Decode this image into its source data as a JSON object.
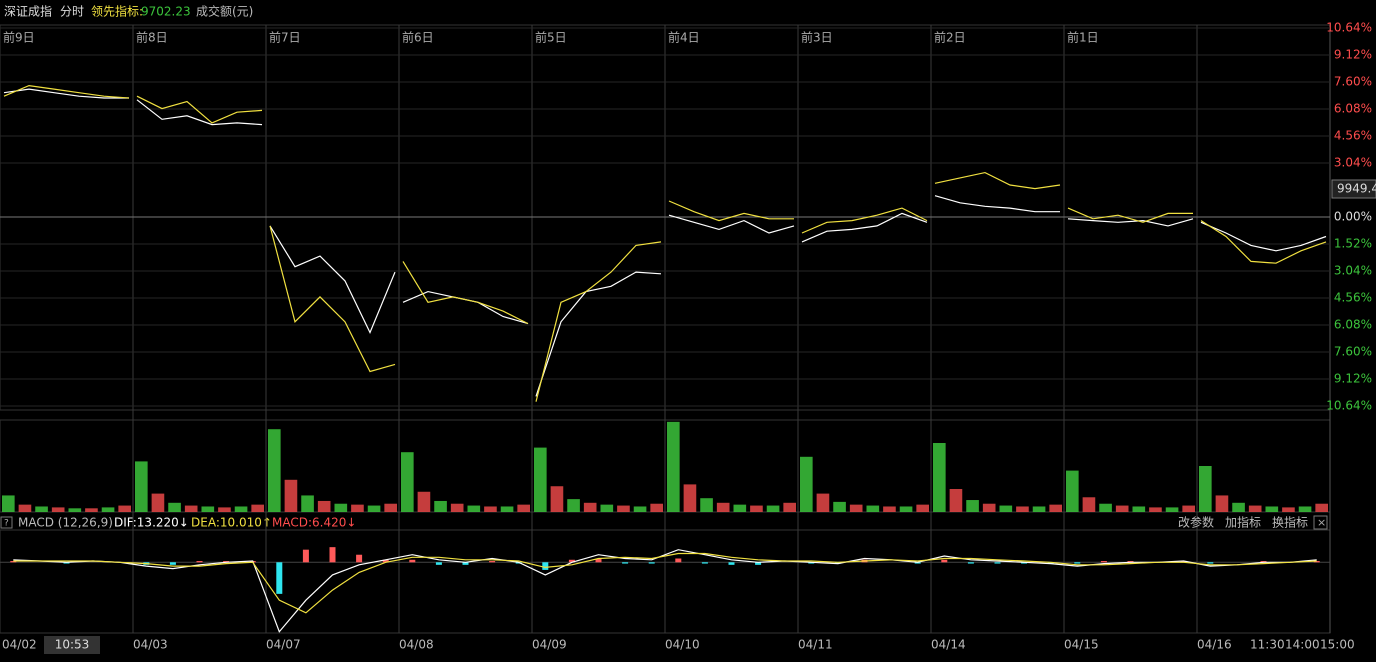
{
  "header": {
    "name": "深证成指",
    "mode": "分时",
    "indicator_label": "领先指标:",
    "indicator_value": "9702.23",
    "volume_label": "成交额(元)"
  },
  "day_labels": [
    "前9日",
    "前8日",
    "前7日",
    "前6日",
    "前5日",
    "前4日",
    "前3日",
    "前2日",
    "前1日"
  ],
  "price_tag": "9949.4",
  "chart": {
    "ylim": [
      -10.64,
      10.64
    ],
    "yticks": [
      {
        "value": 10.64,
        "label": "10.64%"
      },
      {
        "value": 9.12,
        "label": "9.12%"
      },
      {
        "value": 7.6,
        "label": "7.60%"
      },
      {
        "value": 6.08,
        "label": "6.08%"
      },
      {
        "value": 4.56,
        "label": "4.56%"
      },
      {
        "value": 3.04,
        "label": "3.04%"
      },
      {
        "value": 0,
        "label": "0.00%"
      },
      {
        "value": -1.52,
        "label": "1.52%"
      },
      {
        "value": -3.04,
        "label": "3.04%"
      },
      {
        "value": -4.56,
        "label": "4.56%"
      },
      {
        "value": -6.08,
        "label": "6.08%"
      },
      {
        "value": -7.6,
        "label": "7.60%"
      },
      {
        "value": -9.12,
        "label": "9.12%"
      },
      {
        "value": -10.64,
        "label": "10.64%"
      }
    ],
    "series": [
      {
        "color": "#ffffff",
        "values": [
          7.0,
          7.2,
          7.0,
          6.8,
          6.7,
          6.7,
          null,
          6.6,
          5.5,
          5.7,
          5.2,
          5.3,
          5.2,
          null,
          -0.5,
          -2.8,
          -2.2,
          -3.6,
          -6.5,
          -3.1,
          null,
          -4.8,
          -4.2,
          -4.5,
          -4.8,
          -5.6,
          -6.0,
          null,
          -10.1,
          -5.9,
          -4.2,
          -3.9,
          -3.1,
          -3.2,
          null,
          0.1,
          -0.3,
          -0.7,
          -0.2,
          -0.9,
          -0.5,
          null,
          -1.4,
          -0.8,
          -0.7,
          -0.5,
          0.2,
          -0.3,
          null,
          1.2,
          0.8,
          0.6,
          0.5,
          0.3,
          0.3,
          null,
          -0.1,
          -0.2,
          -0.3,
          -0.2,
          -0.5,
          -0.1,
          null,
          -0.3,
          -0.9,
          -1.6,
          -1.9,
          -1.6,
          -1.1
        ]
      },
      {
        "color": "#f0e040",
        "values": [
          6.8,
          7.4,
          7.2,
          7.0,
          6.8,
          6.7,
          null,
          6.8,
          6.1,
          6.5,
          5.3,
          5.9,
          6.0,
          null,
          -0.5,
          -5.9,
          -4.5,
          -5.9,
          -8.7,
          -8.3,
          null,
          -2.5,
          -4.8,
          -4.5,
          -4.8,
          -5.3,
          -6.0,
          null,
          -10.4,
          -4.8,
          -4.2,
          -3.1,
          -1.6,
          -1.4,
          null,
          0.9,
          0.3,
          -0.2,
          0.2,
          -0.1,
          -0.1,
          null,
          -0.9,
          -0.3,
          -0.2,
          0.1,
          0.5,
          -0.2,
          null,
          1.9,
          2.2,
          2.5,
          1.8,
          1.6,
          1.8,
          null,
          0.5,
          -0.1,
          0.1,
          -0.3,
          0.2,
          0.2,
          null,
          -0.2,
          -1.1,
          -2.5,
          -2.6,
          -1.9,
          -1.4
        ]
      }
    ]
  },
  "volume": {
    "ylim": [
      0,
      100
    ],
    "values": [
      18,
      8,
      6,
      5,
      4,
      4,
      5,
      7,
      55,
      20,
      10,
      7,
      6,
      5,
      6,
      8,
      90,
      35,
      18,
      12,
      9,
      8,
      7,
      9,
      65,
      22,
      12,
      9,
      7,
      6,
      6,
      8,
      70,
      28,
      14,
      10,
      8,
      7,
      6,
      9,
      98,
      30,
      15,
      10,
      8,
      7,
      7,
      10,
      60,
      20,
      11,
      8,
      7,
      6,
      6,
      8,
      75,
      25,
      13,
      9,
      7,
      6,
      6,
      8,
      45,
      16,
      9,
      7,
      6,
      5,
      5,
      7,
      50,
      18,
      10,
      7,
      6,
      5,
      6,
      9
    ]
  },
  "macd": {
    "title": "MACD (12,26,9)",
    "dif": "DIF:13.220↓",
    "dea": "DEA:10.010↑",
    "macd": "MACD:6.420↓",
    "buttons": [
      "改参数",
      "加指标",
      "换指标"
    ],
    "ylim": [
      -56,
      24
    ],
    "dif_values": [
      2,
      1,
      0,
      1,
      0,
      -3,
      -5,
      -2,
      0,
      1,
      -55,
      -30,
      -10,
      -2,
      2,
      6,
      2,
      0,
      3,
      0,
      -10,
      0,
      6,
      3,
      2,
      10,
      6,
      2,
      0,
      1,
      0,
      -1,
      3,
      2,
      0,
      5,
      2,
      1,
      0,
      -1,
      -3,
      -1,
      0,
      0,
      1,
      -3,
      -2,
      0,
      0,
      2
    ],
    "dea_values": [
      1,
      1,
      1,
      1,
      0,
      -1,
      -3,
      -3,
      -1,
      0,
      -30,
      -40,
      -22,
      -8,
      0,
      4,
      4,
      2,
      2,
      1,
      -4,
      -2,
      3,
      4,
      3,
      7,
      7,
      4,
      2,
      1,
      1,
      0,
      1,
      2,
      1,
      3,
      3,
      2,
      1,
      0,
      -2,
      -2,
      -1,
      0,
      0,
      -2,
      -2,
      -1,
      0,
      1
    ]
  },
  "x_axis": {
    "dates": [
      "04/02",
      "04/03",
      "04/07",
      "04/08",
      "04/09",
      "04/10",
      "04/11",
      "04/14",
      "04/15",
      "04/16"
    ],
    "cursor": "10:53",
    "times": [
      "11:30",
      "14:00",
      "15:00"
    ]
  }
}
